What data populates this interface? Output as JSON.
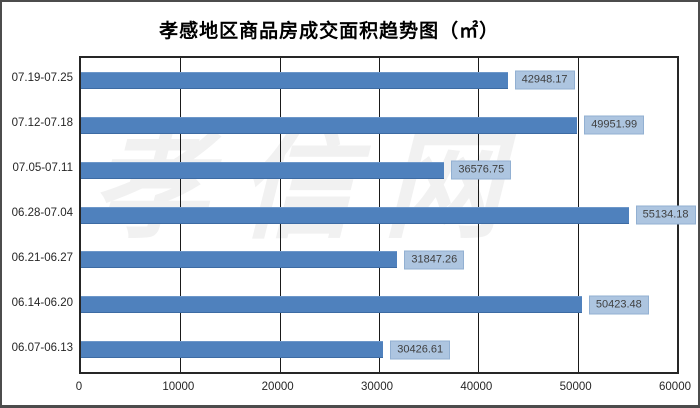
{
  "chart_data": {
    "type": "bar",
    "orientation": "horizontal",
    "title": "孝感地区商品房成交面积趋势图（㎡）",
    "categories": [
      "07.19-07.25",
      "07.12-07.18",
      "07.05-07.11",
      "06.28-07.04",
      "06.21-06.27",
      "06.14-06.20",
      "06.07-06.13"
    ],
    "values": [
      42948.17,
      49951.99,
      36576.75,
      55134.18,
      31847.26,
      50423.48,
      30426.61
    ],
    "value_labels": [
      "42948.17",
      "49951.99",
      "36576.75",
      "55134.18",
      "31847.26",
      "50423.48",
      "30426.61"
    ],
    "xlabel": "",
    "ylabel": "",
    "xlim": [
      0,
      60000
    ],
    "x_ticks": [
      0,
      10000,
      20000,
      30000,
      40000,
      50000,
      60000
    ],
    "x_tick_labels": [
      "0",
      "10000",
      "20000",
      "30000",
      "40000",
      "50000",
      "60000"
    ],
    "grid": "vertical-gridlines-on",
    "legend": "none"
  },
  "watermark": {
    "text": "孝信网"
  },
  "colors": {
    "bar_fill": "#4f81bd",
    "value_label_bg": "#adc5e0",
    "value_label_border": "#92b0d2",
    "value_label_text": "#3f3f3f",
    "axis_text": "#262626",
    "gridline": "#1a1a1a",
    "plot_border": "#262626",
    "outer_border": "#4c4c4c",
    "watermark": "#f1f1f1",
    "background": "#ffffff"
  }
}
